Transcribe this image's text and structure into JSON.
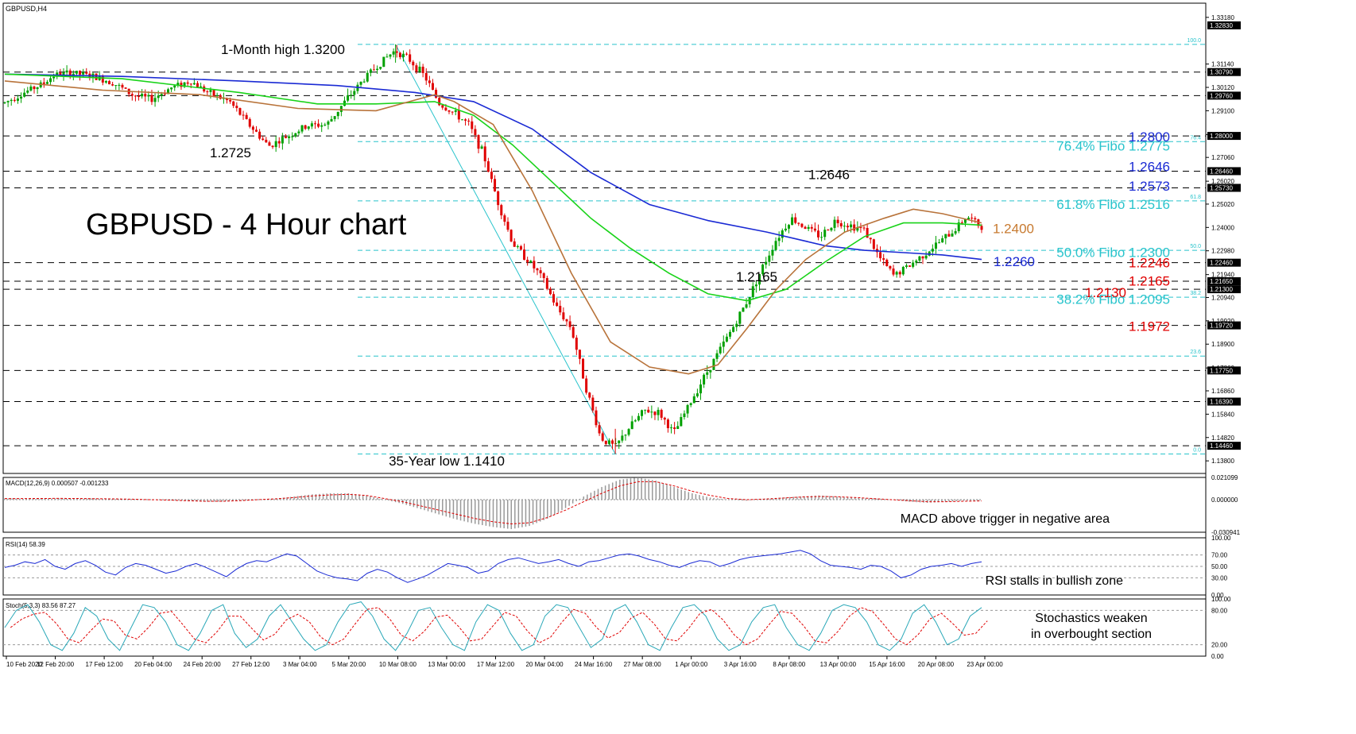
{
  "chart_data": {
    "type": "candlestick",
    "symbol": "GBPUSD,H4",
    "title": "GBPUSD - 4 Hour chart",
    "colors": {
      "up": "#00a000",
      "down": "#e00000",
      "ma_short": "#b8733a",
      "ma_mid": "#19d319",
      "ma_long": "#1a2ad4",
      "fibo": "#29c4cc",
      "resistance_blue": "#1a2ad4",
      "support_red": "#e00000",
      "orange": "#c77a30"
    },
    "date_labels": [
      "10 Feb 2020",
      "12 Feb 20:00",
      "17 Feb 12:00",
      "20 Feb 04:00",
      "24 Feb 20:00",
      "27 Feb 12:00",
      "3 Mar 04:00",
      "5 Mar 20:00",
      "10 Mar 08:00",
      "13 Mar 00:00",
      "17 Mar 12:00",
      "20 Mar 04:00",
      "24 Mar 16:00",
      "27 Mar 08:00",
      "1 Apr 00:00",
      "3 Apr 16:00",
      "8 Apr 08:00",
      "13 Apr 00:00",
      "15 Apr 16:00",
      "20 Apr 08:00",
      "23 Apr 00:00"
    ],
    "price_axis": {
      "ticks": [
        "1.33180",
        "1.31140",
        "1.30120",
        "1.29100",
        "1.28060",
        "1.27060",
        "1.26020",
        "1.25020",
        "1.24000",
        "1.22980",
        "1.21940",
        "1.20940",
        "1.19920",
        "1.18900",
        "1.17860",
        "1.16860",
        "1.15840",
        "1.14820",
        "1.13800"
      ],
      "boxed": [
        "1.32830",
        "1.30790",
        "1.29760",
        "1.28000",
        "1.26460",
        "1.25730",
        "1.22460",
        "1.21650",
        "1.21300",
        "1.19720",
        "1.17750",
        "1.16390",
        "1.14460"
      ],
      "range": [
        1.1325,
        1.338
      ]
    },
    "horizontal_lines": [
      1.3079,
      1.2976,
      1.28,
      1.2646,
      1.2573,
      1.2246,
      1.2165,
      1.213,
      1.1972,
      1.1775,
      1.1639,
      1.1446
    ],
    "fibo_levels": [
      {
        "label": "100.0",
        "price": 1.32
      },
      {
        "label": "76.4",
        "price": 1.2775
      },
      {
        "label": "61.8",
        "price": 1.2516
      },
      {
        "label": "50.0",
        "price": 1.23
      },
      {
        "label": "38.2",
        "price": 1.2095
      },
      {
        "label": "23.6",
        "price": 1.1838
      },
      {
        "label": "0.0",
        "price": 1.141
      }
    ],
    "right_labels": [
      {
        "text": "1.2800",
        "color": "blue",
        "price": 1.28
      },
      {
        "text": "76.4% Fibo 1.2775",
        "color": "cyan",
        "price": 1.276
      },
      {
        "text": "1.2646",
        "color": "blue",
        "price": 1.267
      },
      {
        "text": "1.2573",
        "color": "blue",
        "price": 1.2585
      },
      {
        "text": "61.8% Fibo 1.2516",
        "color": "cyan",
        "price": 1.2505
      },
      {
        "text": "1.2400",
        "color": "orange",
        "price": 1.24
      },
      {
        "text": "50.0% Fibo 1.2300",
        "color": "cyan",
        "price": 1.2295
      },
      {
        "text": "1.2260",
        "color": "blue",
        "price": 1.2255
      },
      {
        "text": "1.2246",
        "color": "red",
        "price": 1.225
      },
      {
        "text": "1.2165",
        "color": "red",
        "price": 1.217
      },
      {
        "text": "1.2130",
        "color": "red",
        "price": 1.212
      },
      {
        "text": "38.2% Fibo 1.2095",
        "color": "cyan",
        "price": 1.209
      },
      {
        "text": "1.1972",
        "color": "red",
        "price": 1.1972
      }
    ],
    "annotations": [
      {
        "text": "1-Month high 1.3200",
        "price": 1.3178
      },
      {
        "text": "1.2725",
        "price": 1.2727
      },
      {
        "text": "1.2646",
        "price": 1.2632
      },
      {
        "text": "1.2165",
        "price": 1.2186
      },
      {
        "text": "35-Year low 1.1410",
        "price": 1.138
      }
    ],
    "price_path": [
      [
        0,
        1.2945
      ],
      [
        0.02,
        1.299
      ],
      [
        0.04,
        1.303
      ],
      [
        0.05,
        1.3065
      ],
      [
        0.07,
        1.3075
      ],
      [
        0.09,
        1.306
      ],
      [
        0.11,
        1.3035
      ],
      [
        0.13,
        1.298
      ],
      [
        0.15,
        1.296
      ],
      [
        0.17,
        1.301
      ],
      [
        0.19,
        1.304
      ],
      [
        0.21,
        1.2985
      ],
      [
        0.23,
        1.295
      ],
      [
        0.25,
        1.285
      ],
      [
        0.27,
        1.2755
      ],
      [
        0.29,
        1.28
      ],
      [
        0.31,
        1.2845
      ],
      [
        0.33,
        1.285
      ],
      [
        0.35,
        1.296
      ],
      [
        0.37,
        1.306
      ],
      [
        0.39,
        1.314
      ],
      [
        0.4,
        1.3175
      ],
      [
        0.415,
        1.313
      ],
      [
        0.43,
        1.306
      ],
      [
        0.445,
        1.294
      ],
      [
        0.46,
        1.29
      ],
      [
        0.475,
        1.285
      ],
      [
        0.49,
        1.272
      ],
      [
        0.505,
        1.251
      ],
      [
        0.52,
        1.233
      ],
      [
        0.535,
        1.226
      ],
      [
        0.55,
        1.218
      ],
      [
        0.565,
        1.205
      ],
      [
        0.58,
        1.196
      ],
      [
        0.595,
        1.17
      ],
      [
        0.61,
        1.148
      ],
      [
        0.625,
        1.144
      ],
      [
        0.64,
        1.153
      ],
      [
        0.655,
        1.16
      ],
      [
        0.67,
        1.159
      ],
      [
        0.685,
        1.15
      ],
      [
        0.7,
        1.162
      ],
      [
        0.715,
        1.174
      ],
      [
        0.73,
        1.185
      ],
      [
        0.745,
        1.196
      ],
      [
        0.76,
        1.208
      ],
      [
        0.775,
        1.222
      ],
      [
        0.79,
        1.235
      ],
      [
        0.805,
        1.244
      ],
      [
        0.82,
        1.24
      ],
      [
        0.835,
        1.236
      ],
      [
        0.85,
        1.243
      ],
      [
        0.865,
        1.241
      ],
      [
        0.88,
        1.239
      ],
      [
        0.895,
        1.227
      ],
      [
        0.91,
        1.219
      ],
      [
        0.925,
        1.223
      ],
      [
        0.94,
        1.228
      ],
      [
        0.955,
        1.233
      ],
      [
        0.97,
        1.238
      ],
      [
        0.985,
        1.245
      ],
      [
        1.0,
        1.24
      ]
    ],
    "ma_short_path": [
      [
        0,
        1.304
      ],
      [
        0.1,
        1.3
      ],
      [
        0.2,
        1.298
      ],
      [
        0.3,
        1.292
      ],
      [
        0.38,
        1.291
      ],
      [
        0.44,
        1.298
      ],
      [
        0.46,
        1.295
      ],
      [
        0.5,
        1.285
      ],
      [
        0.54,
        1.256
      ],
      [
        0.58,
        1.22
      ],
      [
        0.62,
        1.19
      ],
      [
        0.66,
        1.179
      ],
      [
        0.7,
        1.176
      ],
      [
        0.73,
        1.18
      ],
      [
        0.76,
        1.196
      ],
      [
        0.79,
        1.213
      ],
      [
        0.82,
        1.226
      ],
      [
        0.86,
        1.238
      ],
      [
        0.9,
        1.244
      ],
      [
        0.93,
        1.248
      ],
      [
        0.96,
        1.246
      ],
      [
        1.0,
        1.242
      ]
    ],
    "ma_mid_path": [
      [
        0,
        1.307
      ],
      [
        0.12,
        1.305
      ],
      [
        0.24,
        1.299
      ],
      [
        0.32,
        1.294
      ],
      [
        0.38,
        1.294
      ],
      [
        0.44,
        1.295
      ],
      [
        0.48,
        1.289
      ],
      [
        0.52,
        1.276
      ],
      [
        0.56,
        1.26
      ],
      [
        0.6,
        1.244
      ],
      [
        0.64,
        1.231
      ],
      [
        0.68,
        1.22
      ],
      [
        0.72,
        1.211
      ],
      [
        0.76,
        1.208
      ],
      [
        0.8,
        1.213
      ],
      [
        0.84,
        1.225
      ],
      [
        0.88,
        1.236
      ],
      [
        0.92,
        1.242
      ],
      [
        0.96,
        1.242
      ],
      [
        1.0,
        1.241
      ]
    ],
    "ma_long_path": [
      [
        0,
        1.307
      ],
      [
        0.12,
        1.306
      ],
      [
        0.24,
        1.304
      ],
      [
        0.34,
        1.302
      ],
      [
        0.42,
        1.299
      ],
      [
        0.48,
        1.295
      ],
      [
        0.54,
        1.283
      ],
      [
        0.6,
        1.264
      ],
      [
        0.66,
        1.25
      ],
      [
        0.72,
        1.243
      ],
      [
        0.78,
        1.238
      ],
      [
        0.84,
        1.232
      ],
      [
        0.88,
        1.23
      ],
      [
        0.92,
        1.229
      ],
      [
        0.96,
        1.228
      ],
      [
        1.0,
        1.226
      ]
    ],
    "macd": {
      "header": "MACD(12,26,9) 0.000507 -0.001233",
      "ticks": [
        "0.021099",
        "0.000000",
        "-0.030941"
      ],
      "annotation": "MACD above trigger in negative area",
      "histogram": [
        0.001,
        0.001,
        0.001,
        0.0012,
        0.0013,
        0.001,
        0.0008,
        0.0005,
        0.0,
        -0.0005,
        -0.001,
        -0.002,
        -0.002,
        -0.001,
        0.0,
        0.001,
        0.003,
        0.005,
        0.006,
        0.006,
        0.004,
        0.0,
        -0.004,
        -0.009,
        -0.014,
        -0.019,
        -0.023,
        -0.026,
        -0.028,
        -0.025,
        -0.018,
        -0.008,
        0.003,
        0.012,
        0.019,
        0.021,
        0.018,
        0.012,
        0.006,
        0.002,
        0.0,
        -0.001,
        0.001,
        0.002,
        0.003,
        0.004,
        0.003,
        0.002,
        0.001,
        0.0,
        -0.002,
        -0.003,
        -0.002,
        -0.001,
        -0.001
      ],
      "signal": [
        0.001,
        0.001,
        0.0011,
        0.0012,
        0.0011,
        0.0009,
        0.0007,
        0.0004,
        0.0,
        -0.0004,
        -0.001,
        -0.0015,
        -0.0015,
        -0.001,
        0.0,
        0.0008,
        0.002,
        0.0035,
        0.0045,
        0.005,
        0.004,
        0.001,
        -0.002,
        -0.006,
        -0.01,
        -0.014,
        -0.018,
        -0.021,
        -0.023,
        -0.022,
        -0.017,
        -0.01,
        -0.002,
        0.006,
        0.013,
        0.017,
        0.017,
        0.013,
        0.008,
        0.004,
        0.001,
        0.0,
        0.0005,
        0.0015,
        0.0025,
        0.003,
        0.0028,
        0.002,
        0.001,
        0.0,
        -0.001,
        -0.002,
        -0.002,
        -0.0015,
        -0.0012
      ]
    },
    "rsi": {
      "header": "RSI(14) 58.39",
      "ticks": [
        "100.00",
        "70.00",
        "50.00",
        "30.00",
        "0.00"
      ],
      "annotation": "RSI stalls in bullish zone",
      "values": [
        48,
        52,
        58,
        55,
        62,
        50,
        45,
        55,
        60,
        52,
        40,
        35,
        48,
        55,
        52,
        45,
        38,
        42,
        50,
        55,
        48,
        40,
        32,
        45,
        55,
        60,
        58,
        65,
        72,
        68,
        55,
        42,
        35,
        30,
        28,
        25,
        38,
        45,
        40,
        30,
        22,
        28,
        35,
        45,
        55,
        52,
        48,
        38,
        42,
        55,
        62,
        65,
        60,
        55,
        58,
        62,
        55,
        50,
        58,
        60,
        65,
        70,
        72,
        68,
        62,
        58,
        52,
        48,
        55,
        60,
        58,
        50,
        55,
        62,
        66,
        68,
        70,
        72,
        75,
        78,
        72,
        60,
        52,
        50,
        48,
        45,
        52,
        50,
        42,
        30,
        35,
        45,
        50,
        52,
        55,
        50,
        55,
        58
      ]
    },
    "stoch": {
      "header": "Stoch(5,3,3) 83.56 87.27",
      "ticks": [
        "100.00",
        "80.00",
        "20.00",
        "0.00"
      ],
      "annotation1": "Stochastics weaken",
      "annotation2": "in overbought section",
      "k": [
        50,
        80,
        90,
        60,
        20,
        10,
        40,
        85,
        70,
        30,
        10,
        50,
        90,
        85,
        60,
        20,
        10,
        40,
        80,
        90,
        40,
        15,
        30,
        70,
        90,
        60,
        30,
        10,
        20,
        60,
        90,
        95,
        70,
        30,
        10,
        40,
        80,
        85,
        50,
        20,
        10,
        60,
        90,
        80,
        40,
        10,
        20,
        70,
        90,
        85,
        50,
        15,
        30,
        80,
        90,
        60,
        20,
        10,
        50,
        85,
        90,
        70,
        30,
        10,
        20,
        60,
        85,
        90,
        50,
        20,
        10,
        40,
        80,
        90,
        85,
        60,
        20,
        10,
        30,
        75,
        90,
        60,
        20,
        30,
        70,
        85
      ]
    }
  }
}
